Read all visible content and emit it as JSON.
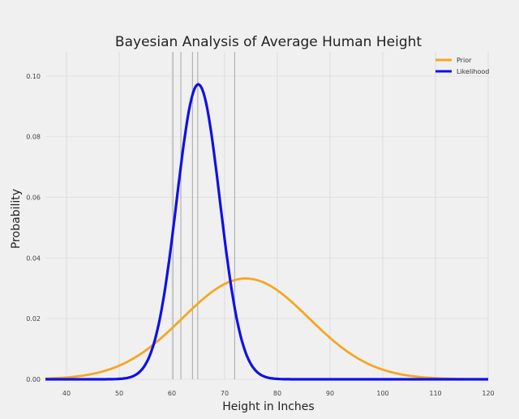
{
  "chart_data": {
    "type": "line",
    "title": "Bayesian Analysis of Average Human Height",
    "xlabel": "Height in Inches",
    "ylabel": "Probability",
    "xlim": [
      36,
      120
    ],
    "ylim": [
      0,
      0.108
    ],
    "xticks": [
      40,
      50,
      60,
      70,
      80,
      90,
      100,
      110,
      120
    ],
    "xtick_labels": [
      "40",
      "50",
      "60",
      "70",
      "80",
      "90",
      "100",
      "110",
      "120"
    ],
    "yticks": [
      0,
      0.02,
      0.04,
      0.06,
      0.08,
      0.1
    ],
    "ytick_labels": [
      "0.00",
      "0.02",
      "0.04",
      "0.06",
      "0.08",
      "0.10"
    ],
    "grid": true,
    "legend_position": "top-right",
    "series": [
      {
        "name": "Prior",
        "color": "#f5a623",
        "distribution": "normal",
        "mean": 74,
        "sd": 12,
        "x": [
          36,
          40,
          44,
          48,
          52,
          56,
          60,
          64,
          68,
          72,
          74,
          76,
          80,
          84,
          88,
          92,
          96,
          100,
          104,
          108,
          112,
          116,
          120
        ],
        "values": [
          0.0003,
          0.0006,
          0.0015,
          0.0032,
          0.0062,
          0.0107,
          0.0168,
          0.0235,
          0.0292,
          0.0328,
          0.0332,
          0.0328,
          0.0292,
          0.0235,
          0.0168,
          0.0107,
          0.0062,
          0.0032,
          0.0015,
          0.0006,
          0.0002,
          0.0001,
          0.0
        ]
      },
      {
        "name": "Likelihood",
        "color": "#1010e8",
        "distribution": "normal",
        "mean": 65,
        "sd": 4.1,
        "x": [
          36,
          50,
          54,
          56,
          58,
          60,
          62,
          64,
          65,
          66,
          68,
          70,
          72,
          74,
          76,
          80,
          90,
          120
        ],
        "values": [
          0.0,
          0.0011,
          0.0026,
          0.009,
          0.0227,
          0.0458,
          0.0744,
          0.0945,
          0.0973,
          0.0945,
          0.0744,
          0.0458,
          0.0227,
          0.009,
          0.0026,
          0.0001,
          0.0,
          0.0
        ]
      }
    ],
    "vertical_lines": {
      "color": "#888888",
      "x": [
        60.2,
        61.7,
        63.9,
        64.9,
        71.9
      ]
    }
  }
}
